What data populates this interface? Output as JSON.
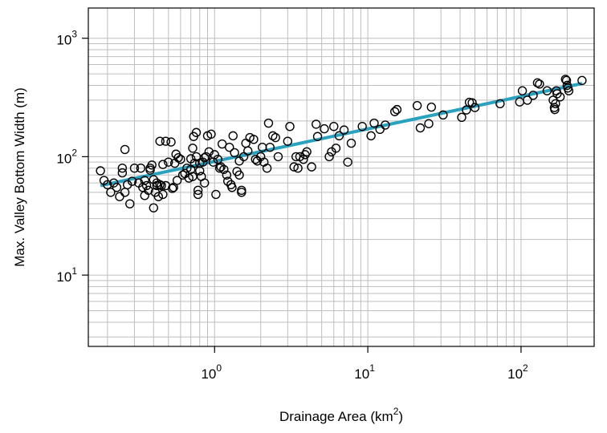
{
  "chart_data": {
    "type": "scatter",
    "title": "",
    "x_scale": "log",
    "y_scale": "log",
    "xlim": [
      0.15,
      300
    ],
    "ylim": [
      2.5,
      1800
    ],
    "grid": true,
    "legend": "none",
    "xlabel": {
      "text": "Drainage Area (km",
      "sup": "2",
      "suffix": ")"
    },
    "ylabel": "Max. Valley Bottom Width (m)",
    "x_ticks": [
      {
        "base": "10",
        "exp": "0",
        "value": 1
      },
      {
        "base": "10",
        "exp": "1",
        "value": 10
      },
      {
        "base": "10",
        "exp": "2",
        "value": 100
      }
    ],
    "y_ticks": [
      {
        "base": "10",
        "exp": "1",
        "value": 10
      },
      {
        "base": "10",
        "exp": "2",
        "value": 100
      },
      {
        "base": "10",
        "exp": "3",
        "value": 1000
      }
    ],
    "colors": {
      "points": "#000000",
      "fit_line": "#2aa1be",
      "grid": "#bebebe",
      "frame": "#000000"
    },
    "fit_line": {
      "x": [
        0.18,
        250
      ],
      "y": [
        57,
        415
      ]
    },
    "points": [
      [
        0.18,
        76
      ],
      [
        0.19,
        63
      ],
      [
        0.2,
        58
      ],
      [
        0.21,
        50
      ],
      [
        0.22,
        60
      ],
      [
        0.23,
        55
      ],
      [
        0.24,
        46
      ],
      [
        0.25,
        73
      ],
      [
        0.25,
        80
      ],
      [
        0.26,
        115
      ],
      [
        0.26,
        50
      ],
      [
        0.27,
        58
      ],
      [
        0.28,
        40
      ],
      [
        0.29,
        62
      ],
      [
        0.3,
        80
      ],
      [
        0.32,
        60
      ],
      [
        0.33,
        80
      ],
      [
        0.34,
        55
      ],
      [
        0.35,
        47
      ],
      [
        0.35,
        63
      ],
      [
        0.36,
        57
      ],
      [
        0.37,
        52
      ],
      [
        0.38,
        80
      ],
      [
        0.38,
        77
      ],
      [
        0.39,
        85
      ],
      [
        0.4,
        37
      ],
      [
        0.4,
        64
      ],
      [
        0.41,
        50
      ],
      [
        0.42,
        57
      ],
      [
        0.42,
        60
      ],
      [
        0.43,
        46
      ],
      [
        0.44,
        58
      ],
      [
        0.44,
        135
      ],
      [
        0.45,
        57
      ],
      [
        0.46,
        48
      ],
      [
        0.46,
        86
      ],
      [
        0.48,
        57
      ],
      [
        0.48,
        135
      ],
      [
        0.5,
        90
      ],
      [
        0.52,
        133
      ],
      [
        0.53,
        54
      ],
      [
        0.54,
        55
      ],
      [
        0.55,
        88
      ],
      [
        0.56,
        105
      ],
      [
        0.57,
        63
      ],
      [
        0.58,
        98
      ],
      [
        0.6,
        95
      ],
      [
        0.62,
        70
      ],
      [
        0.64,
        72
      ],
      [
        0.66,
        80
      ],
      [
        0.68,
        66
      ],
      [
        0.7,
        78
      ],
      [
        0.7,
        96
      ],
      [
        0.72,
        68
      ],
      [
        0.72,
        118
      ],
      [
        0.73,
        148
      ],
      [
        0.74,
        88
      ],
      [
        0.76,
        100
      ],
      [
        0.76,
        160
      ],
      [
        0.78,
        52
      ],
      [
        0.78,
        48
      ],
      [
        0.8,
        88
      ],
      [
        0.8,
        76
      ],
      [
        0.82,
        68
      ],
      [
        0.84,
        90
      ],
      [
        0.86,
        98
      ],
      [
        0.86,
        60
      ],
      [
        0.88,
        100
      ],
      [
        0.9,
        150
      ],
      [
        0.92,
        110
      ],
      [
        0.95,
        155
      ],
      [
        0.98,
        90
      ],
      [
        1.0,
        104
      ],
      [
        1.02,
        48
      ],
      [
        1.05,
        95
      ],
      [
        1.08,
        80
      ],
      [
        1.1,
        82
      ],
      [
        1.12,
        128
      ],
      [
        1.15,
        78
      ],
      [
        1.2,
        70
      ],
      [
        1.22,
        62
      ],
      [
        1.25,
        120
      ],
      [
        1.28,
        58
      ],
      [
        1.3,
        55
      ],
      [
        1.32,
        150
      ],
      [
        1.35,
        108
      ],
      [
        1.4,
        75
      ],
      [
        1.45,
        70
      ],
      [
        1.45,
        92
      ],
      [
        1.5,
        52
      ],
      [
        1.5,
        50
      ],
      [
        1.55,
        100
      ],
      [
        1.6,
        130
      ],
      [
        1.65,
        112
      ],
      [
        1.7,
        145
      ],
      [
        1.8,
        140
      ],
      [
        1.85,
        95
      ],
      [
        1.9,
        92
      ],
      [
        2.0,
        100
      ],
      [
        2.05,
        120
      ],
      [
        2.1,
        90
      ],
      [
        2.2,
        80
      ],
      [
        2.25,
        192
      ],
      [
        2.3,
        120
      ],
      [
        2.4,
        150
      ],
      [
        2.5,
        145
      ],
      [
        2.6,
        100
      ],
      [
        3.0,
        135
      ],
      [
        3.1,
        180
      ],
      [
        3.3,
        82
      ],
      [
        3.4,
        100
      ],
      [
        3.5,
        80
      ],
      [
        3.6,
        100
      ],
      [
        3.8,
        95
      ],
      [
        3.9,
        104
      ],
      [
        4.0,
        110
      ],
      [
        4.3,
        82
      ],
      [
        4.6,
        188
      ],
      [
        4.7,
        148
      ],
      [
        5.2,
        172
      ],
      [
        5.6,
        100
      ],
      [
        5.8,
        110
      ],
      [
        6.0,
        180
      ],
      [
        6.2,
        118
      ],
      [
        6.5,
        150
      ],
      [
        7.0,
        168
      ],
      [
        7.4,
        90
      ],
      [
        7.8,
        130
      ],
      [
        9.2,
        180
      ],
      [
        10.5,
        150
      ],
      [
        11,
        192
      ],
      [
        12,
        170
      ],
      [
        13,
        185
      ],
      [
        15,
        240
      ],
      [
        15.5,
        250
      ],
      [
        21,
        270
      ],
      [
        22,
        175
      ],
      [
        25,
        190
      ],
      [
        26,
        262
      ],
      [
        31,
        225
      ],
      [
        41,
        215
      ],
      [
        44,
        248
      ],
      [
        46,
        288
      ],
      [
        48,
        285
      ],
      [
        50,
        260
      ],
      [
        73,
        280
      ],
      [
        98,
        290
      ],
      [
        102,
        360
      ],
      [
        110,
        300
      ],
      [
        120,
        330
      ],
      [
        128,
        420
      ],
      [
        132,
        410
      ],
      [
        148,
        360
      ],
      [
        162,
        300
      ],
      [
        165,
        260
      ],
      [
        166,
        250
      ],
      [
        168,
        280
      ],
      [
        170,
        360
      ],
      [
        172,
        340
      ],
      [
        180,
        320
      ],
      [
        195,
        450
      ],
      [
        198,
        440
      ],
      [
        200,
        400
      ],
      [
        202,
        380
      ],
      [
        205,
        360
      ],
      [
        250,
        440
      ]
    ]
  }
}
